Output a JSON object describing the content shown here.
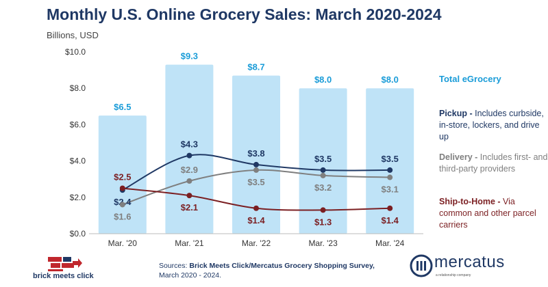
{
  "title": "Monthly U.S. Online Grocery Sales: March 2020-2024",
  "unit": "Billions, USD",
  "legend": {
    "total": "Total eGrocery",
    "pickup_name": "Pickup - ",
    "pickup_desc": "Includes curbside, in-store, lockers, and drive up",
    "delivery_name": "Delivery - ",
    "delivery_desc": "Includes first- and third-party providers",
    "ship_name": "Ship-to-Home - ",
    "ship_desc": "Via common and other parcel carriers"
  },
  "footer": {
    "sources_prefix": "Sources: ",
    "sources_bold": "Brick Meets Click/Mercatus Grocery Shopping Survey,",
    "sources_dates": "March 2020 - 2024."
  },
  "logos": {
    "bmc": "brick meets click",
    "mercatus": "mercatus",
    "mercatus_sub": "a relationship company"
  },
  "colors": {
    "total": "#bfe3f7",
    "total_label": "#1a9cd8",
    "pickup": "#1f3864",
    "delivery": "#7f7f7f",
    "ship": "#7b1f22"
  },
  "chart_data": {
    "type": "bar",
    "title": "Monthly U.S. Online Grocery Sales: March 2020-2024",
    "ylabel": "Billions, USD",
    "ylim": [
      0,
      10
    ],
    "yticks": [
      0,
      2,
      4,
      6,
      8,
      10
    ],
    "ytick_labels": [
      "$0.0",
      "$2.0",
      "$4.0",
      "$6.0",
      "$8.0",
      "$10.0"
    ],
    "categories": [
      "Mar. '20",
      "Mar. '21",
      "Mar. '22",
      "Mar. '23",
      "Mar. '24"
    ],
    "series": [
      {
        "name": "Total eGrocery",
        "kind": "bar",
        "values": [
          6.5,
          9.3,
          8.7,
          8.0,
          8.0
        ],
        "labels": [
          "$6.5",
          "$9.3",
          "$8.7",
          "$8.0",
          "$8.0"
        ]
      },
      {
        "name": "Pickup",
        "kind": "line",
        "values": [
          2.4,
          4.3,
          3.8,
          3.5,
          3.5
        ],
        "labels": [
          "$2.4",
          "$4.3",
          "$3.8",
          "$3.5",
          "$3.5"
        ]
      },
      {
        "name": "Delivery",
        "kind": "line",
        "values": [
          1.6,
          2.9,
          3.5,
          3.2,
          3.1
        ],
        "labels": [
          "$1.6",
          "$2.9",
          "$3.5",
          "$3.2",
          "$3.1"
        ]
      },
      {
        "name": "Ship-to-Home",
        "kind": "line",
        "values": [
          2.5,
          2.1,
          1.4,
          1.3,
          1.4
        ],
        "labels": [
          "$2.5",
          "$2.1",
          "$1.4",
          "$1.3",
          "$1.4"
        ]
      }
    ]
  }
}
